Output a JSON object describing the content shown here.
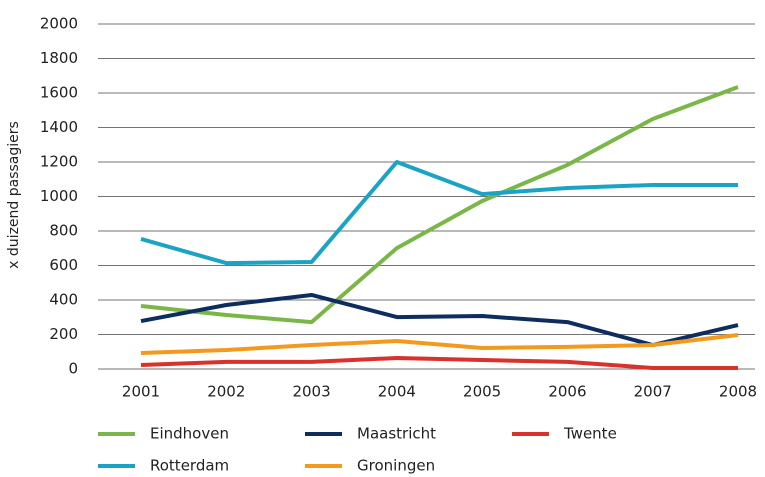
{
  "chart_data": {
    "type": "line",
    "y_label": "x duizend passagiers",
    "categories": [
      "2001",
      "2002",
      "2003",
      "2004",
      "2005",
      "2006",
      "2007",
      "2008"
    ],
    "series": [
      {
        "name": "Eindhoven",
        "color": "#7ab648",
        "values": [
          365,
          313,
          272,
          701,
          974,
          1183,
          1449,
          1635
        ]
      },
      {
        "name": "Maastricht",
        "color": "#0d2d5e",
        "values": [
          278,
          371,
          429,
          301,
          307,
          272,
          139,
          255
        ]
      },
      {
        "name": "Twente",
        "color": "#d9312b",
        "values": [
          23,
          41,
          41,
          64,
          52,
          41,
          6,
          6
        ]
      },
      {
        "name": "Rotterdam",
        "color": "#1ba3c6",
        "values": [
          754,
          614,
          620,
          1200,
          1014,
          1049,
          1067,
          1067
        ]
      },
      {
        "name": "Groningen",
        "color": "#f39a1e",
        "values": [
          93,
          110,
          139,
          162,
          122,
          128,
          139,
          197
        ]
      }
    ],
    "ylim": [
      0,
      2000
    ],
    "yticks": [
      0,
      200,
      400,
      600,
      800,
      1000,
      1200,
      1400,
      1600,
      1800,
      2000
    ],
    "grid": true
  }
}
